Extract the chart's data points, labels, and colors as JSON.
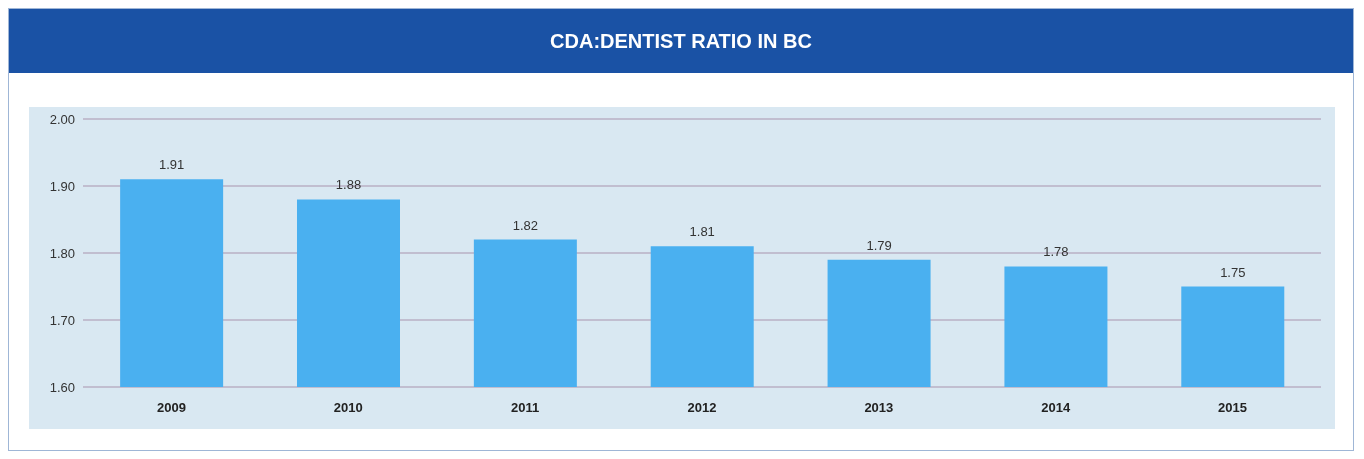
{
  "chart_data": {
    "type": "bar",
    "title": "CDA:DENTIST RATIO IN BC",
    "categories": [
      "2009",
      "2010",
      "2011",
      "2012",
      "2013",
      "2014",
      "2015"
    ],
    "values": [
      1.91,
      1.88,
      1.82,
      1.81,
      1.79,
      1.78,
      1.75
    ],
    "color": "#4ab0f0",
    "ylim": [
      1.6,
      2.0
    ],
    "yticks": [
      {
        "value": 1.6,
        "label": "1.60"
      },
      {
        "value": 1.7,
        "label": "1.70"
      },
      {
        "value": 1.8,
        "label": "1.80"
      },
      {
        "value": 1.9,
        "label": "1.90"
      },
      {
        "value": 2.0,
        "label": "2.00"
      }
    ],
    "grid": "y",
    "data_labels": true
  }
}
